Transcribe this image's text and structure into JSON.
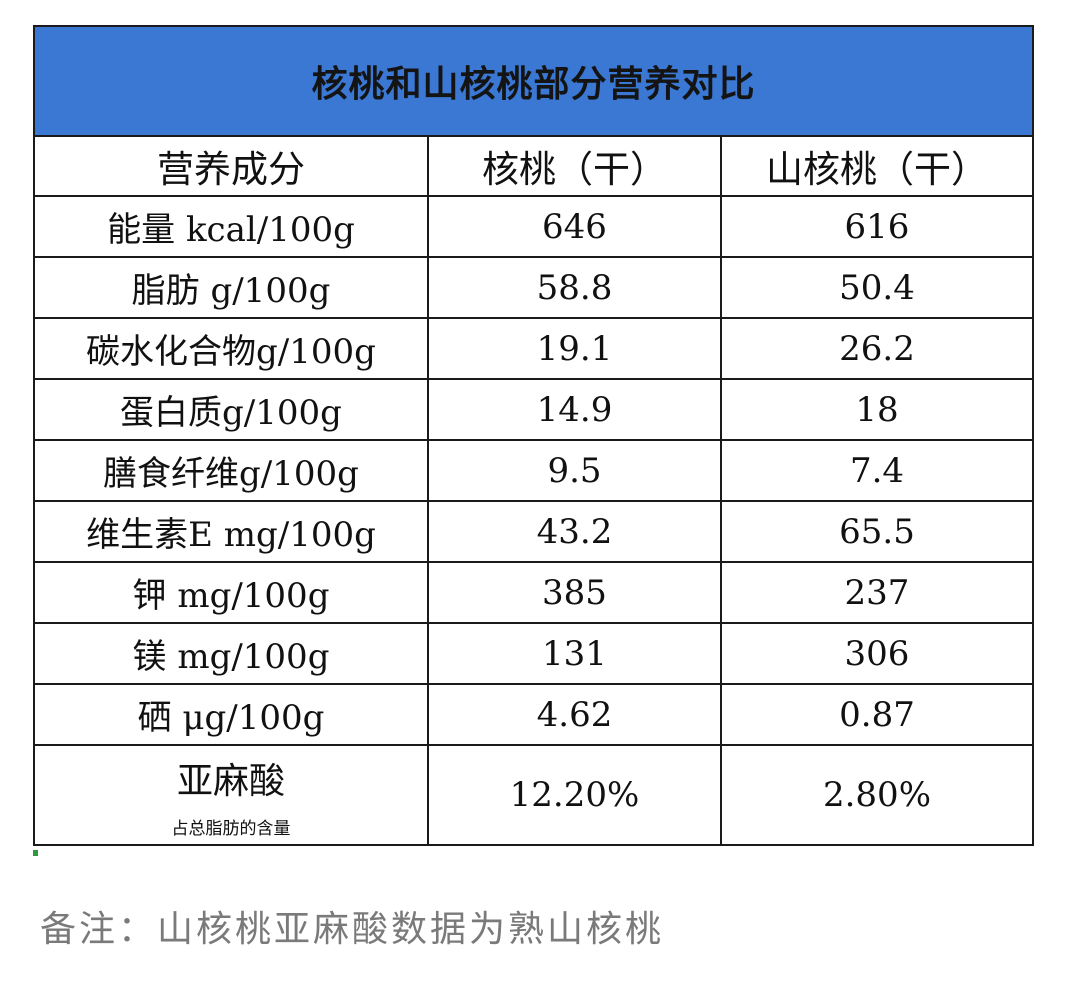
{
  "table": {
    "title": "核桃和山核桃部分营养对比",
    "headers": [
      "营养成分",
      "核桃（干）",
      "山核桃（干）"
    ],
    "rows": [
      {
        "label": "能量 kcal/100g",
        "walnut": "646",
        "hickory": "616"
      },
      {
        "label": "脂肪 g/100g",
        "walnut": "58.8",
        "hickory": "50.4"
      },
      {
        "label": "碳水化合物g/100g",
        "walnut": "19.1",
        "hickory": "26.2"
      },
      {
        "label": "蛋白质g/100g",
        "walnut": "14.9",
        "hickory": "18"
      },
      {
        "label": "膳食纤维g/100g",
        "walnut": "9.5",
        "hickory": "7.4"
      },
      {
        "label": "维生素E mg/100g",
        "walnut": "43.2",
        "hickory": "65.5"
      },
      {
        "label": "钾 mg/100g",
        "walnut": "385",
        "hickory": "237"
      },
      {
        "label": "镁 mg/100g",
        "walnut": "131",
        "hickory": "306"
      },
      {
        "label": "硒 μg/100g",
        "walnut": "4.62",
        "hickory": "0.87"
      }
    ],
    "last_row": {
      "label": "亚麻酸",
      "sublabel": "占总脂肪的含量",
      "walnut": "12.20%",
      "hickory": "2.80%"
    }
  },
  "note": "备注：山核桃亚麻酸数据为熟山核桃",
  "colors": {
    "title_background": "#3a78d4",
    "note_text": "#7a7a7a"
  }
}
